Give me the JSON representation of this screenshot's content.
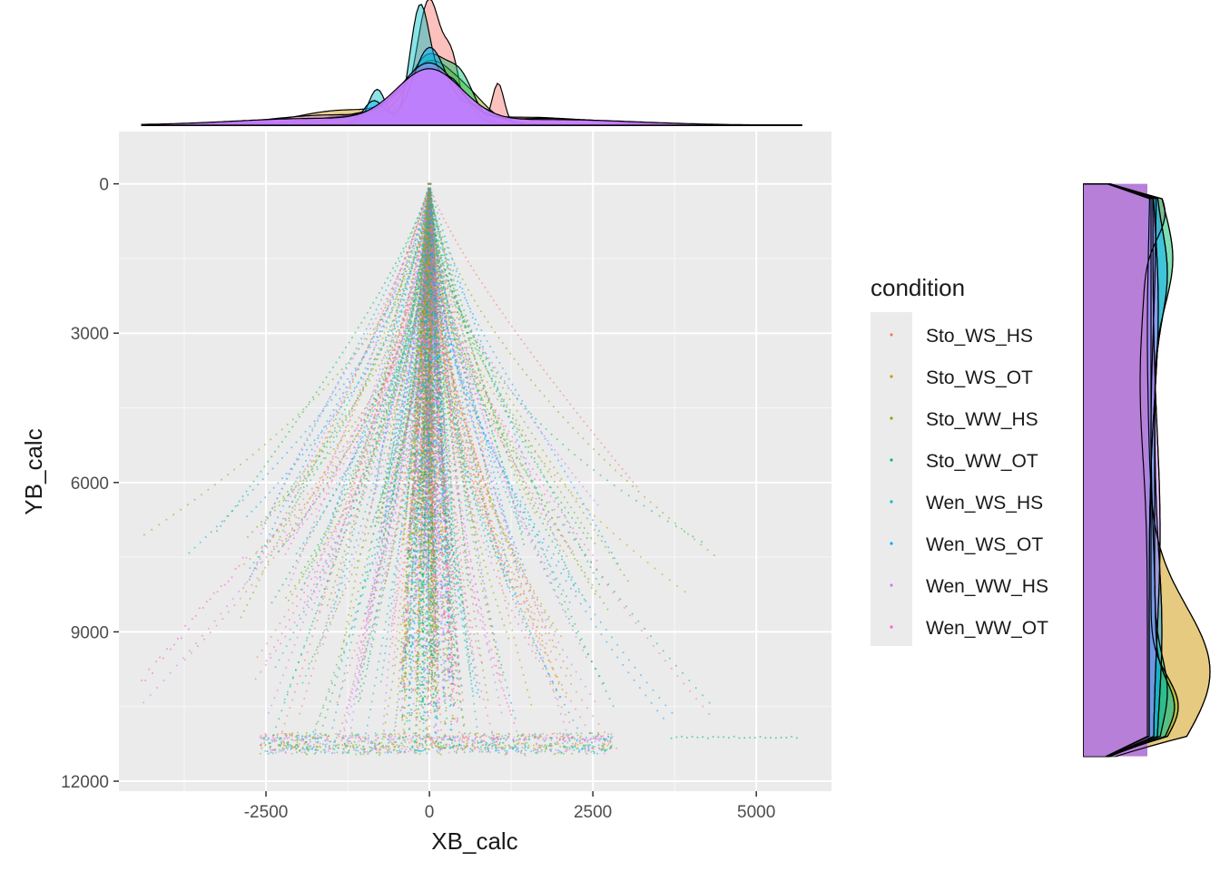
{
  "chart_data": [
    {
      "type": "scatter",
      "title": "",
      "xlabel": "XB_calc",
      "ylabel": "YB_calc",
      "xlim": [
        -4750,
        6150
      ],
      "ylim": [
        -1050,
        12200
      ],
      "y_reversed": true,
      "x_ticks": [
        -2500,
        0,
        2500,
        5000
      ],
      "x_tick_labels": [
        "-2500",
        "0",
        "2500",
        "5000"
      ],
      "y_ticks": [
        0,
        3000,
        6000,
        9000,
        12000
      ],
      "y_tick_labels": [
        "0",
        "3000",
        "6000",
        "9000",
        "12000"
      ],
      "grid": true,
      "legend_title": "condition",
      "legend_position": "right",
      "series": [
        {
          "name": "Sto_WS_HS",
          "color": "#F8766D"
        },
        {
          "name": "Sto_WS_OT",
          "color": "#CD9600"
        },
        {
          "name": "Sto_WW_HS",
          "color": "#7CAE00"
        },
        {
          "name": "Sto_WW_OT",
          "color": "#00BE67"
        },
        {
          "name": "Wen_WS_HS",
          "color": "#00BFC4"
        },
        {
          "name": "Wen_WS_OT",
          "color": "#00A9FF"
        },
        {
          "name": "Wen_WW_HS",
          "color": "#C77CFF"
        },
        {
          "name": "Wen_WW_OT",
          "color": "#FF61CC"
        }
      ],
      "note_points": "trajectories radiate from (0,0) and fan out with increasing YB_calc; extremes reach about XB -4400 to 5700 near YB 11200"
    },
    {
      "type": "area",
      "role": "marginal density of XB_calc (top)",
      "x_range": [
        -4400,
        5700
      ],
      "peak_x": 0,
      "secondary_peaks_x": [
        -800,
        500,
        1050
      ]
    },
    {
      "type": "area",
      "role": "marginal density of YB_calc (right)",
      "y_range": [
        0,
        11500
      ],
      "note": "broad density across YB; a distinct bulge for one series near YB 9000-11000"
    }
  ]
}
